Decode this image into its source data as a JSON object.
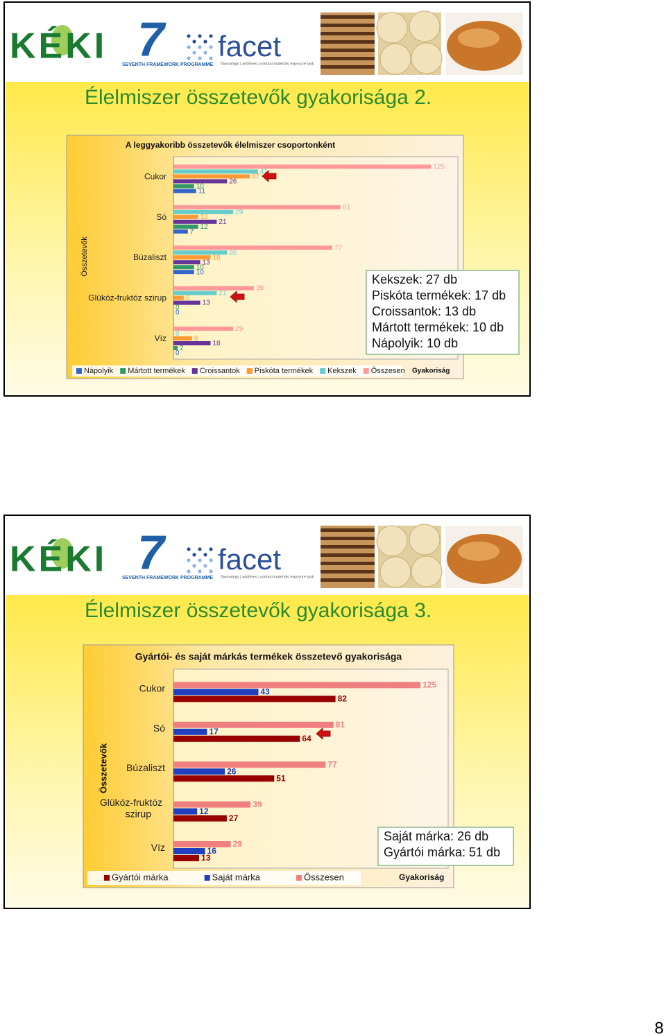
{
  "header": {
    "keki": "KÉKI",
    "fp7_number": "7",
    "fp7": "SEVENTH FRAMEWORK PROGRAMME",
    "facet": "facet",
    "facet_tagline": "flavourings | additives | contact materials exposure task"
  },
  "slides": [
    {
      "title": "Élelmiszer összetevők gyakorisága 2."
    },
    {
      "title": "Élelmiszer összetevők gyakorisága 3."
    }
  ],
  "chart_data": [
    {
      "type": "bar",
      "orientation": "horizontal",
      "title": "A leggyakoribb összetevők élelmiszer csoportonként",
      "ylabel": "Összetevők",
      "xlabel": "Gyakoriság",
      "categories": [
        "Cukor",
        "Só",
        "Búzaliszt",
        "Glükóz-fruktóz szirup",
        "Víz"
      ],
      "series": [
        {
          "name": "Nápolyik",
          "color": "#3366cc",
          "values": [
            11,
            7,
            10,
            0,
            0
          ]
        },
        {
          "name": "Mártott termékek",
          "color": "#339966",
          "values": [
            10,
            12,
            10,
            0,
            2
          ]
        },
        {
          "name": "Croissantok",
          "color": "#663399",
          "values": [
            26,
            21,
            13,
            13,
            18
          ]
        },
        {
          "name": "Piskóta termékek",
          "color": "#ff9933",
          "values": [
            37,
            12,
            18,
            5,
            9
          ]
        },
        {
          "name": "Kekszek",
          "color": "#66cccc",
          "values": [
            41,
            29,
            26,
            21,
            0
          ]
        },
        {
          "name": "Összesen",
          "color": "#ff9999",
          "values": [
            125,
            81,
            77,
            39,
            29
          ]
        }
      ],
      "xlim": [
        0,
        138
      ],
      "legend": "bottom",
      "annotation": [
        "Kekszek: 27 db",
        "Piskóta termékek: 17 db",
        "Croissantok: 13 db",
        "Mártott termékek: 10 db",
        "Nápolyik: 10 db"
      ]
    },
    {
      "type": "bar",
      "orientation": "horizontal",
      "title": "Gyártói- és saját márkás termékek összetevő gyakorisága",
      "ylabel": "Összetevők",
      "xlabel": "Gyakoriság",
      "categories": [
        "Cukor",
        "Só",
        "Búzaliszt",
        "Glükóz-fruktóz szirup",
        "Víz"
      ],
      "series": [
        {
          "name": "Gyártói márka",
          "color": "#990000",
          "values": [
            82,
            64,
            51,
            27,
            13
          ]
        },
        {
          "name": "Saját márka",
          "color": "#1f3fbf",
          "values": [
            43,
            17,
            26,
            12,
            16
          ]
        },
        {
          "name": "Összesen",
          "color": "#f08080",
          "values": [
            125,
            81,
            77,
            39,
            29
          ]
        }
      ],
      "xlim": [
        0,
        139
      ],
      "legend": "bottom",
      "annotation": [
        "Saját márka: 26 db",
        "Gyártói márka: 51 db"
      ]
    }
  ],
  "page_number": "8"
}
